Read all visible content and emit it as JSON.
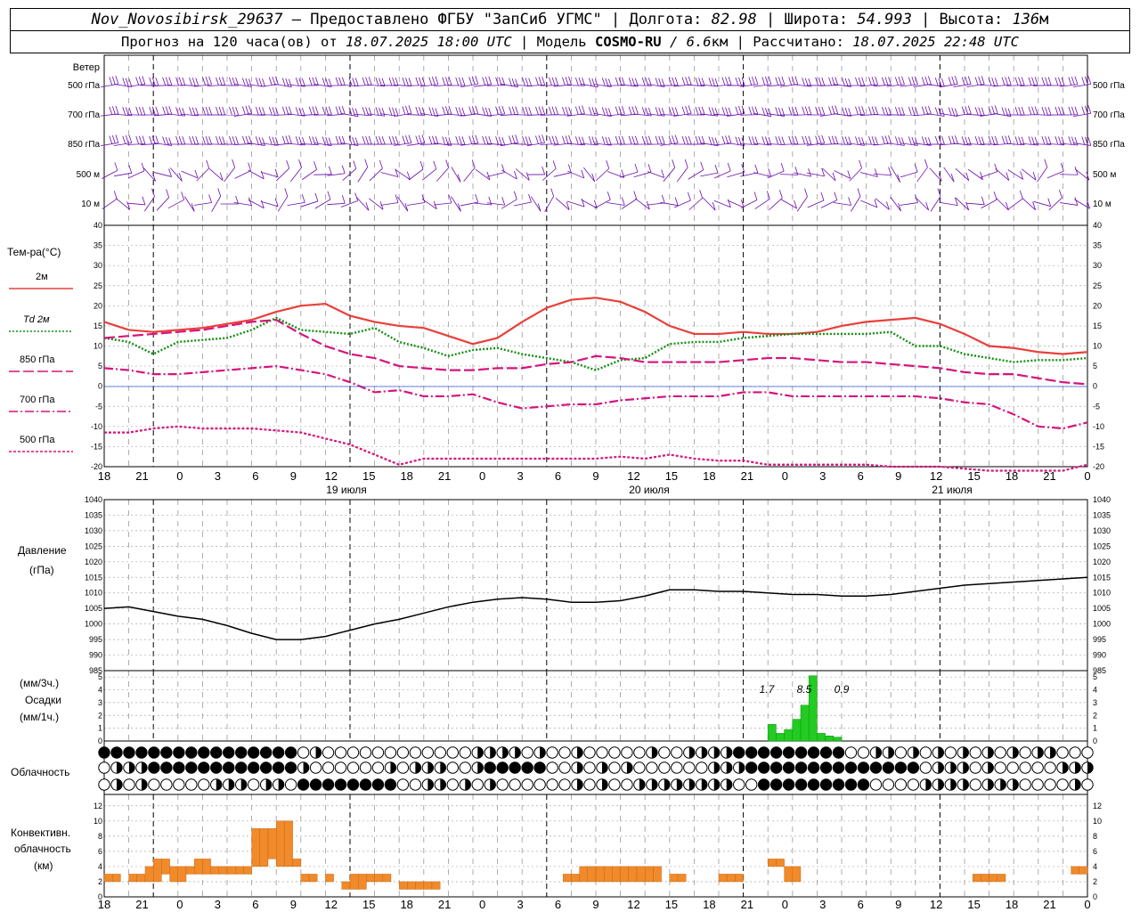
{
  "header": {
    "station": "Nov_Novosibirsk_29637",
    "dash": " – ",
    "provider": "Предоставлено ФГБУ \"ЗапСиб УГМС\"",
    "sep": " | ",
    "lon_label": "Долгота: ",
    "lon_value": "82.98",
    "lat_label": "Широта: ",
    "lat_value": "54.993",
    "alt_label": "Высота: ",
    "alt_value": "136",
    "alt_unit": "м",
    "forecast_prefix": "Прогноз на 120 часа(ов) от ",
    "forecast_time": "18.07.2025 18:00 UTC",
    "model_label": " | Модель ",
    "model_name": "COSMO-RU",
    "model_res": " / 6.6",
    "model_res_unit": "км",
    "calc_label": " | Рассчитано: ",
    "calc_time": "18.07.2025 22:48 UTC"
  },
  "time_axis": {
    "hour_labels": [
      "18",
      "21",
      "0",
      "3",
      "6",
      "9",
      "12",
      "15",
      "18",
      "21",
      "0",
      "3",
      "6",
      "9",
      "12",
      "15",
      "18",
      "21",
      "0",
      "3",
      "6",
      "9",
      "12",
      "15",
      "18",
      "21",
      "0"
    ],
    "date_labels": [
      "19 июля",
      "20 июля",
      "21 июля"
    ]
  },
  "wind_panel": {
    "title": "Ветер",
    "levels": [
      "500 гПа",
      "700 гПа",
      "850 гПа",
      "500 м",
      "10 м"
    ],
    "color": "#6a0dad"
  },
  "temp_panel": {
    "title": "Тем-ра(°C)",
    "legend": [
      {
        "label": "2м",
        "color": "#e8403a",
        "dash": "solid"
      },
      {
        "label": "Td 2м",
        "color": "#138f13",
        "dash": "dotted"
      },
      {
        "label": "850 гПа",
        "color": "#d6147a",
        "dash": "long-dash"
      },
      {
        "label": "700 гПа",
        "color": "#d6147a",
        "dash": "dash-dot"
      },
      {
        "label": "500 гПа",
        "color": "#d6147a",
        "dash": "short-dash"
      }
    ],
    "y_ticks": [
      "40",
      "35",
      "30",
      "25",
      "20",
      "15",
      "10",
      "5",
      "0",
      "-5",
      "-10",
      "-15",
      "-20"
    ]
  },
  "pressure_panel": {
    "title1": "Давление",
    "title2": "(гПа)",
    "y_ticks": [
      "1040",
      "1035",
      "1030",
      "1025",
      "1020",
      "1015",
      "1010",
      "1005",
      "1000",
      "995",
      "990",
      "985"
    ]
  },
  "precip_panel": {
    "title1": "(мм/3ч.)",
    "title2": "Осадки",
    "title3": "(мм/1ч.)",
    "y_ticks": [
      "5",
      "4",
      "3",
      "2",
      "1",
      "0"
    ],
    "labels": [
      "1.7",
      "8.5",
      "0.9"
    ],
    "color": "#22cc22"
  },
  "cloud_panel": {
    "title": "Облачность"
  },
  "conv_panel": {
    "title1": "Конвективн.",
    "title2": "облачность",
    "title3": "(км)",
    "y_ticks": [
      "12",
      "10",
      "8",
      "6",
      "4",
      "2",
      "0"
    ],
    "color": "#f08a2a"
  },
  "chart_data": [
    {
      "type": "line",
      "title": "Тем-ра(°C)",
      "x_unit": "hours from 18.07.2025 18:00 UTC",
      "ylim": [
        -20,
        40
      ],
      "series": [
        {
          "name": "2м",
          "x": [
            0,
            3,
            6,
            9,
            12,
            15,
            18,
            21,
            24,
            27,
            30,
            33,
            36,
            39,
            42,
            45,
            48,
            51,
            54,
            57,
            60,
            63,
            66,
            69,
            72,
            75,
            78,
            81,
            84,
            87,
            90,
            93,
            96,
            99,
            102,
            105,
            108,
            111,
            114,
            117,
            120
          ],
          "values": [
            16,
            14,
            13.5,
            14,
            14.5,
            15.5,
            16.5,
            18.5,
            20,
            20.5,
            17.5,
            16,
            15,
            14.5,
            12.5,
            10.5,
            12,
            16,
            19.5,
            21.5,
            22,
            21,
            18.5,
            15,
            13,
            13,
            13.5,
            13,
            13,
            13.5,
            15,
            16,
            16.5,
            17,
            15.5,
            13,
            10,
            9.5,
            8.5,
            8,
            8.5
          ]
        },
        {
          "name": "Td 2м",
          "x": [
            0,
            3,
            6,
            9,
            12,
            15,
            18,
            21,
            24,
            27,
            30,
            33,
            36,
            39,
            42,
            45,
            48,
            51,
            54,
            57,
            60,
            63,
            66,
            69,
            72,
            75,
            78,
            81,
            84,
            87,
            90,
            93,
            96,
            99,
            102,
            105,
            108,
            111,
            114,
            117,
            120
          ],
          "values": [
            12,
            11,
            8,
            11,
            11.5,
            12,
            14,
            17,
            14,
            13.5,
            13,
            14.5,
            11,
            9.5,
            7.5,
            9,
            9.5,
            8,
            7,
            6,
            4,
            6.5,
            7,
            10.5,
            11,
            11,
            12,
            12.5,
            13,
            13,
            13,
            13,
            13.5,
            10,
            10,
            8,
            7,
            6,
            6.5,
            6.5,
            7
          ]
        },
        {
          "name": "850 гПа",
          "x": [
            0,
            3,
            6,
            9,
            12,
            15,
            18,
            21,
            24,
            27,
            30,
            33,
            36,
            39,
            42,
            45,
            48,
            51,
            54,
            57,
            60,
            63,
            66,
            69,
            72,
            75,
            78,
            81,
            84,
            87,
            90,
            93,
            96,
            99,
            102,
            105,
            108,
            111,
            114,
            117,
            120
          ],
          "values": [
            12,
            12.5,
            13,
            13.5,
            14,
            15,
            16,
            16.5,
            13,
            10,
            8,
            7,
            5,
            4.5,
            4,
            4,
            4.5,
            4.5,
            5.5,
            6,
            7.5,
            7,
            6,
            6,
            6,
            6,
            6.5,
            7,
            7,
            6.5,
            6,
            6,
            5.5,
            5,
            4.5,
            3.5,
            3,
            3,
            2,
            1,
            0.5
          ]
        },
        {
          "name": "700 гПа",
          "x": [
            0,
            3,
            6,
            9,
            12,
            15,
            18,
            21,
            24,
            27,
            30,
            33,
            36,
            39,
            42,
            45,
            48,
            51,
            54,
            57,
            60,
            63,
            66,
            69,
            72,
            75,
            78,
            81,
            84,
            87,
            90,
            93,
            96,
            99,
            102,
            105,
            108,
            111,
            114,
            117,
            120
          ],
          "values": [
            4.5,
            4,
            3,
            3,
            3.5,
            4,
            4.5,
            5,
            4,
            3,
            1,
            -1.5,
            -1,
            -2.5,
            -2.5,
            -2,
            -4,
            -5.5,
            -5,
            -4.5,
            -4.5,
            -3.5,
            -3,
            -2.5,
            -2.5,
            -2.5,
            -1.5,
            -1.5,
            -2.5,
            -2.5,
            -2.5,
            -2.5,
            -2.5,
            -2.5,
            -3,
            -4,
            -4.5,
            -7,
            -10,
            -10.5,
            -9
          ]
        },
        {
          "name": "500 гПа",
          "x": [
            0,
            3,
            6,
            9,
            12,
            15,
            18,
            21,
            24,
            27,
            30,
            33,
            36,
            39,
            42,
            45,
            48,
            51,
            54,
            57,
            60,
            63,
            66,
            69,
            72,
            75,
            78,
            81,
            84,
            87,
            90,
            93,
            96,
            99,
            102,
            105,
            108,
            111,
            114,
            117,
            120
          ],
          "values": [
            -11.5,
            -11.5,
            -10.5,
            -10,
            -10.5,
            -10.5,
            -10.5,
            -11,
            -11.5,
            -13,
            -14.5,
            -17,
            -19.5,
            -18,
            -18,
            -18,
            -18,
            -18,
            -18,
            -18,
            -18,
            -17.5,
            -18,
            -17,
            -18,
            -18.5,
            -18.5,
            -19.5,
            -19.5,
            -19.5,
            -19.5,
            -19.5,
            -20,
            -20,
            -20,
            -20.5,
            -21,
            -21,
            -21,
            -21,
            -19.5
          ]
        }
      ]
    },
    {
      "type": "line",
      "title": "Давление",
      "ylabel": "(гПа)",
      "ylim": [
        985,
        1040
      ],
      "series": [
        {
          "name": "",
          "x": [
            0,
            3,
            6,
            9,
            12,
            15,
            18,
            21,
            24,
            27,
            30,
            33,
            36,
            39,
            42,
            45,
            48,
            51,
            54,
            57,
            60,
            63,
            66,
            69,
            72,
            75,
            78,
            81,
            84,
            87,
            90,
            93,
            96,
            99,
            102,
            105,
            108,
            111,
            114,
            117,
            120
          ],
          "values": [
            1005,
            1005.5,
            1004,
            1002.5,
            1001.5,
            999.5,
            997,
            995,
            995,
            996,
            998,
            1000,
            1001.5,
            1003.5,
            1005.5,
            1007,
            1008,
            1008.5,
            1008,
            1007,
            1007,
            1007.5,
            1009,
            1011,
            1011,
            1010.5,
            1010.5,
            1010,
            1009.5,
            1009.5,
            1009,
            1009,
            1009.5,
            1010.5,
            1011.5,
            1012.5,
            1013,
            1013.5,
            1014,
            1014.5,
            1015
          ]
        }
      ]
    },
    {
      "type": "bar",
      "title": "Осадки",
      "ylabel": "(мм/3ч.) (мм/1ч.)",
      "ylim": [
        0,
        5
      ],
      "series": [
        {
          "name": "",
          "x": [
            81,
            82,
            83,
            84,
            85,
            86,
            87,
            88,
            89
          ],
          "values": [
            1.3,
            0.6,
            0.9,
            1.7,
            2.8,
            5.1,
            0.6,
            0.4,
            0.3
          ]
        }
      ],
      "annotations": [
        {
          "x": 83,
          "text": "1.7"
        },
        {
          "x": 86,
          "text": "8.5"
        },
        {
          "x": 88,
          "text": "0.9"
        }
      ]
    },
    {
      "type": "bar",
      "title": "Конвективн. облачность",
      "ylabel": "(км)",
      "ylim": [
        0,
        12
      ],
      "series": [
        {
          "name": "",
          "x": [
            0,
            1,
            2,
            3,
            4,
            5,
            6,
            7,
            8,
            9,
            10,
            11,
            12,
            13,
            14,
            15,
            16,
            17,
            18,
            19,
            20,
            21,
            22,
            23,
            24,
            25,
            26,
            27,
            28,
            29,
            30,
            31,
            32,
            33,
            34,
            35,
            36,
            37,
            38,
            39,
            40,
            41,
            42,
            43,
            44,
            45,
            46,
            47,
            48,
            49,
            50,
            51,
            52,
            53,
            54,
            55,
            56,
            57,
            58,
            59,
            60,
            61,
            62,
            63,
            64,
            65,
            66,
            67,
            68,
            69,
            70,
            71,
            72,
            73,
            74,
            75,
            76,
            77,
            78,
            79,
            80,
            81,
            82,
            83,
            84,
            85,
            86,
            87,
            88,
            89,
            90,
            91,
            92,
            93,
            94,
            95,
            96,
            97,
            98,
            99,
            100,
            101,
            102,
            103,
            104,
            105,
            106,
            107,
            108,
            109,
            110,
            111,
            112,
            113,
            114,
            115,
            116,
            117,
            118,
            119
          ],
          "base": [
            2,
            2,
            0,
            2,
            2,
            2,
            2,
            3,
            2,
            2,
            3,
            3,
            3,
            3,
            3,
            3,
            3,
            3,
            4,
            4,
            5,
            4,
            4,
            4,
            2,
            2,
            0,
            2,
            0,
            1,
            1,
            1,
            2,
            2,
            2,
            2,
            1,
            1,
            1,
            1,
            1,
            0,
            0,
            0,
            0,
            0,
            0,
            0,
            0,
            0,
            0,
            0,
            0,
            0,
            0,
            0,
            2,
            2,
            2,
            2,
            2,
            2,
            2,
            2,
            2,
            2,
            2,
            2,
            0,
            2,
            2,
            0,
            0,
            0,
            0,
            2,
            2,
            2,
            0,
            0,
            0,
            4,
            4,
            2,
            2,
            0,
            0,
            0,
            0,
            0,
            0,
            0,
            0,
            0,
            0,
            0,
            0,
            0,
            0,
            0,
            0,
            0,
            0,
            0,
            0,
            0,
            2,
            2,
            2,
            2,
            0,
            0,
            0,
            0,
            0,
            0,
            0,
            0,
            3,
            3
          ],
          "top": [
            3,
            3,
            0,
            3,
            3,
            4,
            5,
            5,
            4,
            4,
            4,
            5,
            5,
            4,
            4,
            4,
            4,
            4,
            9,
            9,
            9,
            10,
            10,
            5,
            3,
            3,
            0,
            3,
            0,
            2,
            3,
            3,
            3,
            3,
            3,
            2,
            2,
            2,
            2,
            2,
            2,
            0,
            0,
            0,
            0,
            0,
            0,
            0,
            0,
            0,
            0,
            0,
            0,
            0,
            0,
            0,
            3,
            3,
            4,
            4,
            4,
            4,
            4,
            4,
            4,
            4,
            4,
            4,
            0,
            3,
            3,
            0,
            0,
            0,
            0,
            3,
            3,
            3,
            0,
            0,
            0,
            5,
            5,
            4,
            4,
            0,
            0,
            0,
            0,
            0,
            0,
            0,
            0,
            0,
            0,
            0,
            0,
            0,
            0,
            0,
            0,
            0,
            0,
            0,
            0,
            0,
            3,
            3,
            3,
            3,
            0,
            0,
            0,
            0,
            0,
            0,
            0,
            0,
            4,
            4
          ]
        }
      ]
    }
  ]
}
